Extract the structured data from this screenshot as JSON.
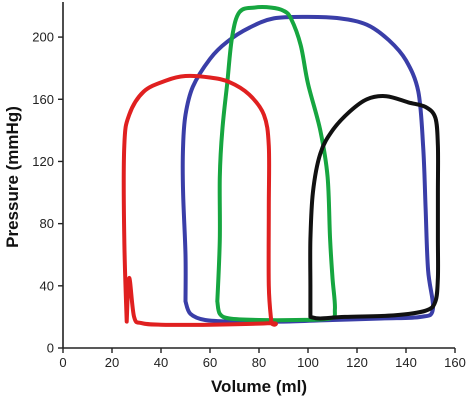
{
  "chart_data": {
    "type": "line",
    "title": "",
    "xlabel": "Volume (ml)",
    "ylabel": "Pressure (mmHg)",
    "xlim": [
      0,
      160
    ],
    "ylim": [
      0,
      220
    ],
    "x_ticks": [
      "0",
      "20",
      "40",
      "60",
      "80",
      "100",
      "120",
      "140",
      "160"
    ],
    "y_ticks": [
      "0",
      "40",
      "80",
      "120",
      "160",
      "200"
    ],
    "grid": false,
    "legend": "none",
    "series": [
      {
        "color": "#e02020",
        "points": [
          [
            26,
            17
          ],
          [
            25,
            70
          ],
          [
            25,
            130
          ],
          [
            27,
            150
          ],
          [
            33,
            165
          ],
          [
            42,
            172
          ],
          [
            50,
            175
          ],
          [
            60,
            174
          ],
          [
            68,
            171
          ],
          [
            76,
            163
          ],
          [
            82,
            150
          ],
          [
            84,
            130
          ],
          [
            84,
            90
          ],
          [
            84,
            40
          ],
          [
            85,
            17
          ],
          [
            85,
            16
          ],
          [
            60,
            15
          ],
          [
            40,
            15
          ],
          [
            32,
            16
          ],
          [
            29,
            20
          ],
          [
            27,
            45
          ],
          [
            26,
            17
          ]
        ]
      },
      {
        "color": "#3a3ea8",
        "points": [
          [
            50,
            30
          ],
          [
            50,
            60
          ],
          [
            49,
            100
          ],
          [
            49,
            130
          ],
          [
            50,
            150
          ],
          [
            53,
            168
          ],
          [
            60,
            186
          ],
          [
            67,
            197
          ],
          [
            76,
            206
          ],
          [
            86,
            212
          ],
          [
            100,
            213
          ],
          [
            113,
            212
          ],
          [
            124,
            208
          ],
          [
            133,
            198
          ],
          [
            140,
            185
          ],
          [
            145,
            165
          ],
          [
            147,
            130
          ],
          [
            148,
            90
          ],
          [
            149,
            50
          ],
          [
            151,
            25
          ],
          [
            146,
            20
          ],
          [
            130,
            19
          ],
          [
            110,
            18
          ],
          [
            90,
            17
          ],
          [
            70,
            17
          ],
          [
            58,
            18
          ],
          [
            52,
            22
          ],
          [
            50,
            30
          ]
        ]
      },
      {
        "color": "#16a640",
        "points": [
          [
            63,
            30
          ],
          [
            64,
            70
          ],
          [
            64,
            110
          ],
          [
            65,
            140
          ],
          [
            67,
            170
          ],
          [
            69,
            200
          ],
          [
            72,
            216
          ],
          [
            78,
            219
          ],
          [
            85,
            219
          ],
          [
            90,
            217
          ],
          [
            93,
            212
          ],
          [
            97,
            195
          ],
          [
            100,
            170
          ],
          [
            105,
            140
          ],
          [
            108,
            110
          ],
          [
            109,
            70
          ],
          [
            110,
            45
          ],
          [
            111,
            25
          ],
          [
            109,
            19
          ],
          [
            95,
            18
          ],
          [
            80,
            18
          ],
          [
            68,
            19
          ],
          [
            64,
            22
          ],
          [
            63,
            30
          ]
        ]
      },
      {
        "color": "#111111",
        "points": [
          [
            101,
            20
          ],
          [
            101,
            40
          ],
          [
            101,
            70
          ],
          [
            102,
            100
          ],
          [
            105,
            125
          ],
          [
            110,
            140
          ],
          [
            117,
            152
          ],
          [
            124,
            160
          ],
          [
            132,
            162
          ],
          [
            141,
            158
          ],
          [
            148,
            155
          ],
          [
            152,
            148
          ],
          [
            153,
            130
          ],
          [
            153,
            100
          ],
          [
            153,
            70
          ],
          [
            153,
            45
          ],
          [
            152,
            30
          ],
          [
            148,
            24
          ],
          [
            135,
            21
          ],
          [
            115,
            20
          ],
          [
            105,
            19
          ],
          [
            101,
            20
          ]
        ]
      }
    ]
  }
}
